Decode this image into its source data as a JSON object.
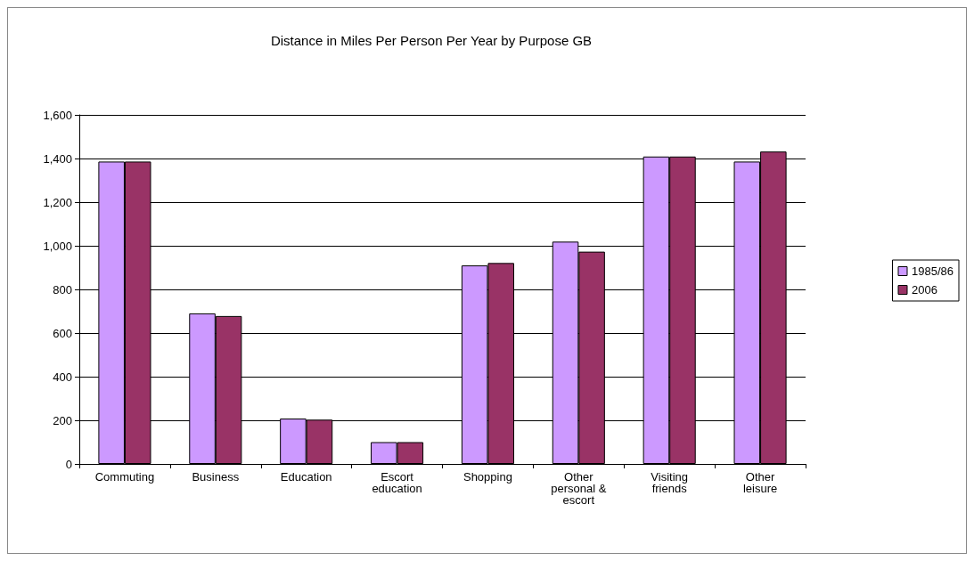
{
  "chart_data": {
    "type": "bar",
    "title": "Distance in Miles Per Person Per Year by Purpose GB",
    "categories": [
      "Commuting",
      "Business",
      "Education",
      "Escort education",
      "Shopping",
      "Other personal & escort",
      "Visiting friends",
      "Other leisure"
    ],
    "series": [
      {
        "name": "1985/86",
        "color": "#cc99ff",
        "values": [
          1386,
          690,
          208,
          100,
          910,
          1019,
          1409,
          1386
        ]
      },
      {
        "name": "2006",
        "color": "#993366",
        "values": [
          1386,
          678,
          203,
          100,
          921,
          973,
          1409,
          1432
        ]
      }
    ],
    "ylim": [
      0,
      1600
    ],
    "yticks": [
      0,
      200,
      400,
      600,
      800,
      {
        "value": 1000,
        "label": "1,000"
      },
      {
        "value": 1200,
        "label": "1,200"
      },
      {
        "value": 1400,
        "label": "1,400"
      },
      {
        "value": 1600,
        "label": "1,600"
      }
    ],
    "grid": "y",
    "legend": "right"
  }
}
